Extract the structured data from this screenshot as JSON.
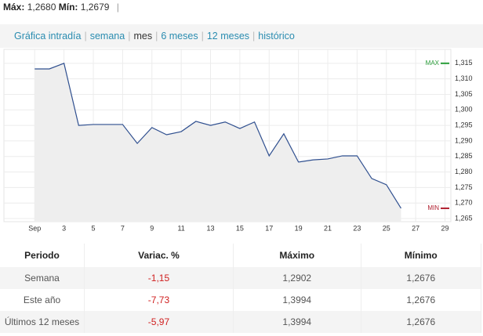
{
  "header": {
    "max_label": "Máx:",
    "max_value": "1,2680",
    "min_label": "Mín:",
    "min_value": "1,2679"
  },
  "tabs": [
    "Gráfica intradía",
    "semana",
    "mes",
    "6 meses",
    "12 meses",
    "histórico"
  ],
  "active_tab": 2,
  "chart_data": {
    "type": "line",
    "x": [
      1,
      2,
      3,
      4,
      5,
      6,
      7,
      8,
      9,
      10,
      11,
      12,
      13,
      14,
      15,
      16,
      17,
      18,
      19,
      20,
      21,
      22,
      23,
      24,
      25,
      26
    ],
    "values": [
      1.3132,
      1.3132,
      1.315,
      1.295,
      1.2953,
      1.2953,
      1.2953,
      1.2892,
      1.2943,
      1.292,
      1.293,
      1.2963,
      1.295,
      1.2961,
      1.294,
      1.2961,
      1.2852,
      1.2923,
      1.2832,
      1.2839,
      1.2842,
      1.2852,
      1.2852,
      1.2779,
      1.2759,
      1.2683
    ],
    "color": "#2f4f8f",
    "fill": "#eeeeee",
    "grid": true,
    "xlim": [
      -1.1,
      29.4
    ],
    "xticks": [
      {
        "value": 1,
        "label": "Sep"
      },
      3,
      5,
      7,
      9,
      11,
      13,
      15,
      17,
      19,
      21,
      23,
      25,
      27,
      29
    ],
    "ylim": [
      1.264,
      1.3195
    ],
    "yticks": [
      {
        "value": 1.265,
        "label": "1,265"
      },
      {
        "value": 1.27,
        "label": "1,270"
      },
      {
        "value": 1.275,
        "label": "1,275"
      },
      {
        "value": 1.28,
        "label": "1,280"
      },
      {
        "value": 1.285,
        "label": "1,285"
      },
      {
        "value": 1.29,
        "label": "1,290"
      },
      {
        "value": 1.295,
        "label": "1,295"
      },
      {
        "value": 1.3,
        "label": "1,300"
      },
      {
        "value": 1.305,
        "label": "1,305"
      },
      {
        "value": 1.31,
        "label": "1,310"
      },
      {
        "value": 1.315,
        "label": "1,315"
      }
    ],
    "markers": [
      {
        "label": "MAX",
        "value": 1.315,
        "color": "#2a9d3a"
      },
      {
        "label": "MIN",
        "value": 1.2683,
        "color": "#b02030"
      }
    ]
  },
  "table": {
    "columns": [
      "Periodo",
      "Variac. %",
      "Máximo",
      "Mínimo"
    ],
    "rows": [
      [
        "Semana",
        "-1,15",
        "1,2902",
        "1,2676"
      ],
      [
        "Este año",
        "-7,73",
        "1,3994",
        "1,2676"
      ],
      [
        "Últimos 12 meses",
        "-5,97",
        "1,3994",
        "1,2676"
      ]
    ]
  }
}
